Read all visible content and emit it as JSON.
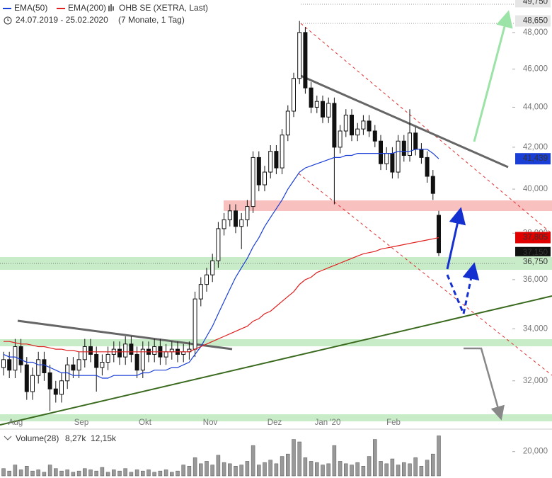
{
  "chart_data": {
    "type": "candlestick",
    "series": [
      {
        "name": "OHB SE (XETRA, Last)",
        "open": [
          32500,
          32800,
          32400,
          33300,
          32600,
          31600,
          32200,
          32800,
          32300,
          31700,
          31500,
          32000,
          32600,
          32400,
          32800,
          33300,
          33000,
          32500,
          32700,
          33000,
          33200,
          32900,
          33400,
          33000,
          32400,
          33200,
          33000,
          33300,
          32900,
          33100,
          33200,
          33000,
          33100,
          33200,
          35200,
          35800,
          36200,
          36800,
          38200,
          38600,
          39000,
          38300,
          38600,
          39200,
          41500,
          40200,
          40800,
          41800,
          41000,
          42600,
          43800,
          45500,
          48000,
          45000,
          44000,
          44300,
          43500,
          44200,
          42000,
          42800,
          43600,
          42600,
          42900,
          43300,
          42800,
          42300,
          41200,
          41700,
          40800,
          42300,
          41600,
          42700,
          41900,
          41500,
          40600,
          38800
        ],
        "high": [
          33100,
          33100,
          33600,
          33600,
          32900,
          32500,
          33100,
          33100,
          32600,
          32000,
          32300,
          32900,
          32900,
          33100,
          33600,
          33600,
          33300,
          33000,
          33300,
          33500,
          33500,
          33700,
          33700,
          33300,
          33500,
          33500,
          33600,
          33600,
          33400,
          33500,
          33500,
          33400,
          33500,
          35500,
          36100,
          36500,
          37100,
          38500,
          38900,
          39300,
          39300,
          38900,
          39500,
          41800,
          41800,
          41100,
          42100,
          42100,
          42900,
          44100,
          45800,
          48650,
          48300,
          45300,
          44600,
          44600,
          44500,
          44500,
          43100,
          43900,
          43900,
          43200,
          43600,
          43600,
          43100,
          42600,
          42000,
          42000,
          42600,
          42600,
          43900,
          43000,
          42200,
          41800,
          40900,
          39000
        ],
        "low": [
          32200,
          32100,
          32100,
          32300,
          31300,
          31300,
          31900,
          32000,
          30900,
          31200,
          31200,
          31700,
          32100,
          32100,
          32500,
          32700,
          31600,
          32200,
          32400,
          32700,
          32600,
          32600,
          32700,
          32100,
          32100,
          32700,
          32700,
          32600,
          32600,
          32800,
          32700,
          32700,
          32800,
          32900,
          34900,
          35500,
          35900,
          36500,
          37900,
          38300,
          38000,
          37300,
          38300,
          38900,
          39900,
          39900,
          40500,
          40700,
          40700,
          42300,
          43500,
          45200,
          44700,
          43700,
          43700,
          43200,
          43200,
          39300,
          41700,
          42500,
          42300,
          42300,
          42600,
          42500,
          42000,
          40900,
          40900,
          40500,
          40500,
          41300,
          41300,
          41600,
          41200,
          40300,
          39500,
          37000
        ],
        "close": [
          32800,
          32400,
          33300,
          32600,
          31600,
          32200,
          32800,
          32300,
          31700,
          31500,
          32000,
          32600,
          32400,
          32800,
          33300,
          33000,
          32500,
          32700,
          33000,
          33200,
          32900,
          33400,
          33000,
          32400,
          33200,
          33000,
          33300,
          32900,
          33100,
          33200,
          33000,
          33100,
          33200,
          35200,
          35800,
          36200,
          36800,
          38200,
          38600,
          39000,
          38300,
          38600,
          39200,
          41500,
          40200,
          40800,
          41800,
          41000,
          42600,
          43800,
          45500,
          48000,
          45000,
          44000,
          44300,
          43500,
          44200,
          42000,
          42800,
          43600,
          42600,
          42900,
          43300,
          42800,
          42300,
          41200,
          41700,
          40800,
          42300,
          41600,
          42700,
          41900,
          41500,
          40600,
          39800,
          37150
        ]
      }
    ],
    "indicators": [
      {
        "name": "EMA(50)",
        "color": "#1a3fd6",
        "values": [
          33000,
          32900,
          32900,
          32800,
          32700,
          32700,
          32600,
          32600,
          32500,
          32400,
          32300,
          32300,
          32200,
          32200,
          32200,
          32200,
          32200,
          32100,
          32100,
          32200,
          32200,
          32200,
          32200,
          32200,
          32300,
          32300,
          32400,
          32400,
          32400,
          32500,
          32500,
          32600,
          32700,
          33000,
          33300,
          33700,
          34100,
          34600,
          35100,
          35600,
          36100,
          36500,
          36900,
          37400,
          37800,
          38300,
          38700,
          39100,
          39500,
          40000,
          40400,
          40800,
          41000,
          41100,
          41200,
          41300,
          41400,
          41500,
          41500,
          41600,
          41600,
          41700,
          41700,
          41700,
          41700,
          41700,
          41700,
          41700,
          41800,
          41800,
          41800,
          41900,
          41900,
          41900,
          41700,
          41439
        ]
      },
      {
        "name": "EMA(200)",
        "color": "#e02020",
        "values": [
          33500,
          33500,
          33450,
          33400,
          33400,
          33350,
          33300,
          33300,
          33250,
          33200,
          33200,
          33150,
          33150,
          33100,
          33100,
          33100,
          33100,
          33100,
          33100,
          33100,
          33100,
          33100,
          33100,
          33100,
          33100,
          33100,
          33100,
          33100,
          33100,
          33100,
          33100,
          33100,
          33100,
          33200,
          33300,
          33400,
          33500,
          33600,
          33700,
          33800,
          33900,
          34000,
          34100,
          34300,
          34400,
          34600,
          34700,
          34900,
          35100,
          35300,
          35500,
          35800,
          36000,
          36100,
          36300,
          36400,
          36500,
          36600,
          36700,
          36800,
          36900,
          37000,
          37100,
          37150,
          37200,
          37300,
          37350,
          37400,
          37450,
          37500,
          37550,
          37600,
          37650,
          37700,
          37750,
          37805
        ]
      }
    ],
    "subtitle": "24.07.2019 - 25.02.2020",
    "period": "(7 Monate, 1 Tag)",
    "x_labels": [
      "Aug",
      "Sep",
      "Okt",
      "Nov",
      "Dez",
      "Jan '20",
      "Feb"
    ],
    "log_scale": true,
    "ylim": [
      30400,
      49850
    ],
    "yticks": [
      {
        "value": 32000,
        "label": "32,000"
      },
      {
        "value": 34000,
        "label": "34,000"
      },
      {
        "value": 36000,
        "label": "36,000"
      },
      {
        "value": 38000,
        "label": "38,000"
      },
      {
        "value": 40000,
        "label": "40,000"
      },
      {
        "value": 42000,
        "label": "42,000"
      },
      {
        "value": 44000,
        "label": "44,000"
      },
      {
        "value": 46000,
        "label": "46,000"
      },
      {
        "value": 48000,
        "label": "48,000"
      }
    ],
    "price_labels": [
      {
        "value": 49750,
        "label": "49,750",
        "color": "#e6e6e6",
        "text_color": "#555"
      },
      {
        "value": 48650,
        "label": "48,650",
        "color": "#e6e6e6",
        "text_color": "#555"
      },
      {
        "value": 41439,
        "label": "41,439",
        "color": "#1a3fd6",
        "text_color": "#fff"
      },
      {
        "value": 37805,
        "label": "37,805",
        "color": "#e00000",
        "text_color": "#fff"
      },
      {
        "value": 37150,
        "label": "37,150",
        "color": "#111",
        "text_color": "#fff"
      },
      {
        "value": 36750,
        "label": "36,750",
        "color": "#c8ecc8",
        "text_color": "#555"
      }
    ],
    "volume": {
      "name": "Volume(28)",
      "stats": [
        {
          "label": "8,27k",
          "color": "#4a6fa5"
        },
        {
          "label": "12,15k",
          "color": "#d9a400"
        }
      ],
      "color": "#999",
      "values": [
        6000,
        4000,
        9000,
        5000,
        8000,
        4000,
        5000,
        3000,
        9000,
        6000,
        4000,
        5000,
        3000,
        4000,
        6000,
        5000,
        4000,
        7000,
        3000,
        5000,
        4000,
        6000,
        3000,
        5000,
        4000,
        5000,
        3000,
        4000,
        5000,
        3000,
        4000,
        9000,
        8000,
        15000,
        10000,
        12000,
        9000,
        17000,
        11000,
        10000,
        8000,
        9000,
        12000,
        25000,
        9000,
        11000,
        13000,
        10000,
        16000,
        18000,
        30000,
        28000,
        15000,
        12000,
        11000,
        9000,
        10000,
        25000,
        12000,
        10000,
        9000,
        11000,
        8000,
        16000,
        30000,
        12000,
        10000,
        14000,
        9000,
        11000,
        10000,
        15000,
        8000,
        13000,
        18000,
        33000
      ],
      "ylim": [
        0,
        35000
      ],
      "yticks": [
        {
          "value": 20000,
          "label": "20,000"
        }
      ]
    }
  }
}
